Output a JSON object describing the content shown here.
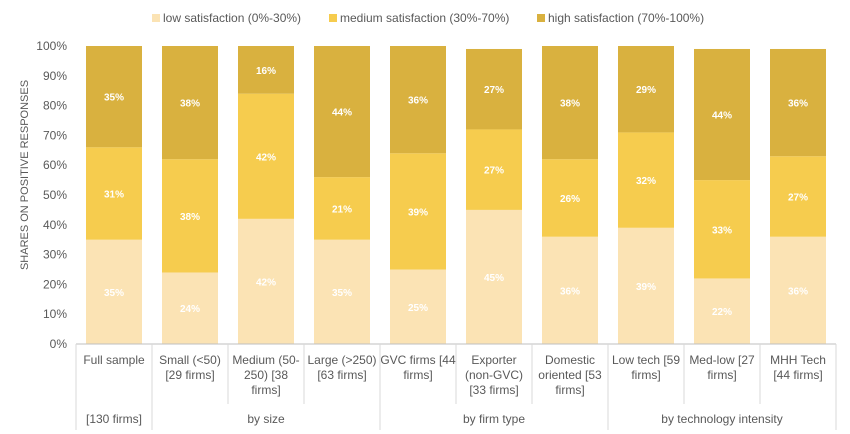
{
  "chart_data": {
    "type": "bar",
    "stacked": true,
    "percent": true,
    "ylabel": "SHARES ON POSITIVE RESPONSES",
    "ylim": [
      0,
      100
    ],
    "yticks": [
      "0%",
      "10%",
      "20%",
      "30%",
      "40%",
      "50%",
      "60%",
      "70%",
      "80%",
      "90%",
      "100%"
    ],
    "grid": false,
    "legend_position": "top",
    "categories": [
      [
        "Full sample"
      ],
      [
        "Small (<50)",
        "[29 firms]"
      ],
      [
        "Medium (50-",
        "250) [38",
        "firms]"
      ],
      [
        "Large (>250)",
        "[63 firms]"
      ],
      [
        "GVC firms [44",
        "firms]"
      ],
      [
        "Exporter",
        "(non-GVC)",
        "[33 firms]"
      ],
      [
        "Domestic",
        "oriented [53",
        "firms]"
      ],
      [
        "Low tech [59",
        "firms]"
      ],
      [
        "Med-low [27",
        "firms]"
      ],
      [
        "MHH Tech",
        "[44 firms]"
      ]
    ],
    "groups": [
      {
        "label": "[130 firms]",
        "start": 0,
        "end": 0
      },
      {
        "label": "by size",
        "start": 1,
        "end": 3
      },
      {
        "label": "by firm type",
        "start": 4,
        "end": 6
      },
      {
        "label": "by technology intensity",
        "start": 7,
        "end": 9
      }
    ],
    "series": [
      {
        "name": "low satisfaction (0%-30%)",
        "color": "#fbe3b4",
        "values": [
          35,
          24,
          42,
          35,
          25,
          45,
          36,
          39,
          22,
          36
        ],
        "labels": [
          "35%",
          "24%",
          "42%",
          "35%",
          "25%",
          "45%",
          "36%",
          "39%",
          "22%",
          "36%"
        ]
      },
      {
        "name": "medium satisfaction (30%-70%)",
        "color": "#f6cc4e",
        "values": [
          31,
          38,
          42,
          21,
          39,
          27,
          26,
          32,
          33,
          27
        ],
        "labels": [
          "31%",
          "38%",
          "42%",
          "21%",
          "39%",
          "27%",
          "26%",
          "32%",
          "33%",
          "27%"
        ]
      },
      {
        "name": "high satisfaction (70%-100%)",
        "color": "#d9b13f",
        "values": [
          35,
          38,
          16,
          44,
          36,
          27,
          38,
          29,
          44,
          36
        ],
        "labels": [
          "35%",
          "38%",
          "16%",
          "44%",
          "36%",
          "27%",
          "38%",
          "29%",
          "44%",
          "36%"
        ]
      }
    ]
  }
}
